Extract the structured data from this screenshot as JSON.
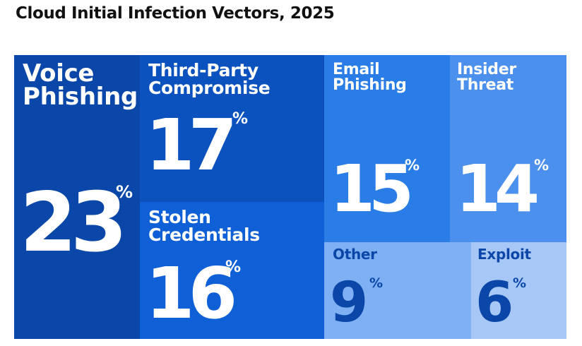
{
  "title": "Cloud Initial Infection Vectors, 2025",
  "chart_data": {
    "type": "treemap",
    "title": "Cloud Initial Infection Vectors, 2025",
    "unit": "%",
    "items": [
      {
        "label": "Voice\nPhishing",
        "value": 23,
        "color": "#0a47a8",
        "text_color": "#ffffff"
      },
      {
        "label": "Third-Party\nCompromise",
        "value": 17,
        "color": "#0c52bf",
        "text_color": "#ffffff"
      },
      {
        "label": "Stolen\nCredentials",
        "value": 16,
        "color": "#0f5fd6",
        "text_color": "#ffffff"
      },
      {
        "label": "Email\nPhishing",
        "value": 15,
        "color": "#2a7de6",
        "text_color": "#ffffff"
      },
      {
        "label": "Insider\nThreat",
        "value": 14,
        "color": "#4a90ec",
        "text_color": "#ffffff"
      },
      {
        "label": "Other",
        "value": 9,
        "color": "#7fb0f3",
        "text_color": "#0a47a8"
      },
      {
        "label": "Exploit",
        "value": 6,
        "color": "#a7c8f7",
        "text_color": "#0a47a8"
      }
    ]
  }
}
